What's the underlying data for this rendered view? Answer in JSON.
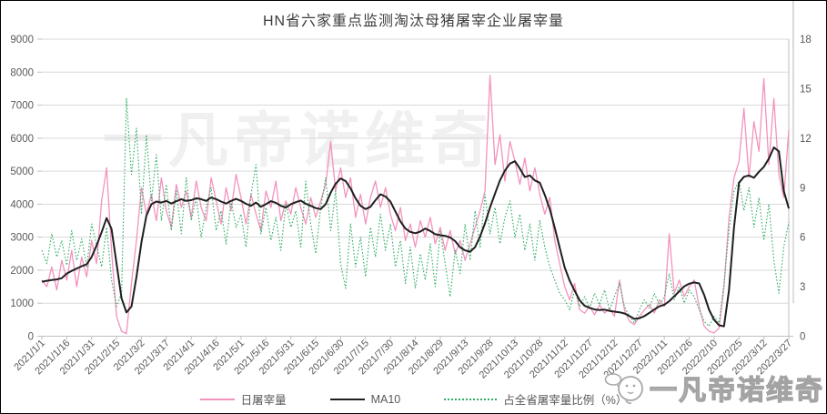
{
  "title": "HN省六家重点监测淘汰母猪屠宰企业屠宰量",
  "watermark_center": "一凡帝诺维奇",
  "watermark_corner": "一凡帝诺维奇",
  "legend": {
    "items": [
      {
        "label": "日屠宰量"
      },
      {
        "label": "MA10"
      },
      {
        "label": "占全省屠宰量比例（%）"
      }
    ]
  },
  "colors": {
    "title_text": "#3d3d3d",
    "axis_text": "#595959",
    "gridline": "#d9d9d9",
    "axis_line": "#bfbfbf",
    "pink_series": "#f293be",
    "black_series": "#1f1f1f",
    "green_series": "#2fad61",
    "frame_border": "#000000"
  },
  "chart_data": {
    "type": "line",
    "title": "HN省六家重点监测淘汰母猪屠宰企业屠宰量",
    "x_start_date": "2021/1/1",
    "x_end_date": "2022/3/27",
    "sample_interval_days": 3,
    "x_tick_interval_days": 15,
    "grid": "horizontal",
    "legend_position": "bottom",
    "x_tick_labels": [
      "2021/1/1",
      "2021/1/16",
      "2021/1/31",
      "2021/2/15",
      "2021/3/2",
      "2021/3/17",
      "2021/4/1",
      "2021/4/16",
      "2021/5/1",
      "2021/5/16",
      "2021/5/31",
      "2021/6/15",
      "2021/6/30",
      "2021/7/15",
      "2021/7/30",
      "2021/8/14",
      "2021/8/29",
      "2021/9/13",
      "2021/9/28",
      "2021/10/13",
      "2021/10/28",
      "2021/11/12",
      "2021/11/27",
      "2021/12/12",
      "2021/12/27",
      "2022/1/11",
      "2022/1/26",
      "2022/2/10",
      "2022/2/25",
      "2022/3/12",
      "2022/3/27"
    ],
    "left_axis": {
      "lim": [
        0,
        9000
      ],
      "ticks": [
        0,
        1000,
        2000,
        3000,
        4000,
        5000,
        6000,
        7000,
        8000,
        9000
      ]
    },
    "right_axis": {
      "lim": [
        0,
        18
      ],
      "ticks": [
        0,
        3,
        6,
        9,
        12,
        15,
        18
      ]
    },
    "series": [
      {
        "name": "日屠宰量",
        "axis": "left",
        "color": "#f293be",
        "line": "solid",
        "width": 1.3,
        "values": [
          1700,
          1500,
          2100,
          1400,
          2300,
          1700,
          2600,
          1500,
          2400,
          1800,
          2900,
          2200,
          4100,
          5100,
          2600,
          600,
          150,
          80,
          1600,
          2900,
          4500,
          3700,
          4300,
          3500,
          4800,
          3800,
          3300,
          4600,
          3900,
          4400,
          3600,
          4700,
          3900,
          3500,
          4800,
          4100,
          3400,
          4500,
          3800,
          4900,
          4200,
          3400,
          4300,
          3700,
          3200,
          4400,
          3900,
          4700,
          3500,
          4100,
          3700,
          4500,
          3900,
          3400,
          4200,
          3600,
          4100,
          4600,
          5900,
          4400,
          5100,
          4200,
          4800,
          3600,
          4300,
          3400,
          4200,
          4700,
          3900,
          4500,
          3700,
          3200,
          3900,
          2900,
          3400,
          2700,
          3500,
          3000,
          3600,
          2800,
          3300,
          2600,
          3200,
          2500,
          2900,
          2300,
          2800,
          3300,
          3800,
          4400,
          7900,
          5200,
          6100,
          4700,
          5900,
          5300,
          4600,
          5400,
          4400,
          5100,
          4300,
          3700,
          4200,
          2900,
          2200,
          1500,
          1100,
          1600,
          800,
          700,
          900,
          650,
          950,
          700,
          850,
          600,
          1700,
          800,
          450,
          350,
          600,
          800,
          950,
          700,
          1100,
          900,
          3100,
          1300,
          1700,
          1200,
          1500,
          1700,
          900,
          300,
          150,
          100,
          250,
          1500,
          3600,
          4800,
          5300,
          6900,
          4800,
          6500,
          5600,
          7800,
          5200,
          7200,
          4900,
          4200,
          6250
        ]
      },
      {
        "name": "MA10",
        "axis": "left",
        "color": "#1f1f1f",
        "line": "solid",
        "width": 2,
        "values": [
          1650,
          1680,
          1700,
          1720,
          1760,
          1900,
          1980,
          2050,
          2120,
          2180,
          2400,
          2750,
          3150,
          3580,
          3250,
          2200,
          1150,
          720,
          900,
          1800,
          2850,
          3650,
          4000,
          4080,
          4050,
          4100,
          4020,
          4090,
          4150,
          4100,
          4120,
          4180,
          4150,
          4100,
          4200,
          4150,
          4080,
          4020,
          4100,
          4160,
          4100,
          4010,
          3950,
          4050,
          3920,
          4000,
          4090,
          4040,
          3950,
          3900,
          4000,
          4060,
          4110,
          4010,
          3950,
          3880,
          3850,
          4000,
          4350,
          4620,
          4780,
          4700,
          4480,
          4180,
          3950,
          3850,
          3920,
          4120,
          4300,
          4230,
          4080,
          3780,
          3480,
          3260,
          3160,
          3120,
          3170,
          3260,
          3190,
          3090,
          3060,
          3040,
          2990,
          2880,
          2690,
          2600,
          2560,
          2700,
          3020,
          3420,
          3900,
          4320,
          4720,
          5020,
          5230,
          5300,
          5080,
          4820,
          4870,
          4720,
          4650,
          4280,
          3850,
          3280,
          2680,
          2080,
          1680,
          1380,
          1090,
          920,
          860,
          810,
          790,
          805,
          765,
          745,
          725,
          690,
          610,
          525,
          545,
          610,
          705,
          810,
          905,
          955,
          1060,
          1210,
          1360,
          1510,
          1590,
          1630,
          1600,
          1250,
          800,
          500,
          330,
          300,
          1400,
          3300,
          4650,
          4830,
          4870,
          4800,
          4980,
          5130,
          5380,
          5720,
          5600,
          4400,
          3870
        ]
      },
      {
        "name": "占全省屠宰量比例（%）",
        "axis": "right",
        "color": "#2fad61",
        "line": "dotted",
        "width": 1.1,
        "values": [
          5.2,
          4.4,
          6.2,
          4.8,
          5.8,
          4.3,
          6.4,
          4.6,
          5.9,
          4.2,
          6.8,
          5.5,
          4.2,
          6.6,
          3.4,
          1.8,
          2.6,
          14.4,
          9.8,
          12.6,
          7.4,
          12.2,
          8.2,
          11.0,
          7.0,
          9.2,
          6.4,
          8.8,
          6.2,
          9.6,
          7.0,
          8.4,
          6.0,
          7.8,
          9.0,
          6.4,
          7.6,
          5.6,
          8.2,
          6.6,
          7.4,
          5.4,
          8.6,
          10.4,
          6.2,
          7.8,
          5.8,
          7.2,
          5.2,
          8.0,
          6.6,
          7.6,
          5.4,
          9.4,
          6.8,
          5.0,
          7.8,
          9.6,
          6.4,
          8.8,
          4.4,
          2.9,
          6.8,
          4.2,
          6.0,
          3.6,
          6.6,
          4.8,
          7.4,
          5.2,
          6.8,
          4.2,
          5.8,
          3.2,
          5.4,
          2.9,
          5.0,
          3.4,
          5.6,
          3.0,
          6.4,
          4.4,
          2.4,
          5.2,
          3.8,
          6.8,
          4.6,
          7.6,
          5.4,
          8.6,
          6.2,
          7.8,
          5.6,
          7.2,
          8.2,
          6.0,
          7.4,
          5.2,
          6.8,
          4.6,
          7.0,
          5.4,
          4.2,
          3.4,
          2.6,
          2.2,
          1.6,
          2.8,
          1.8,
          2.4,
          1.7,
          2.6,
          1.9,
          2.8,
          1.6,
          2.4,
          3.2,
          1.8,
          1.2,
          0.8,
          1.6,
          2.2,
          1.7,
          2.6,
          1.9,
          2.4,
          3.8,
          2.2,
          3.0,
          2.0,
          2.8,
          2.4,
          1.6,
          0.9,
          0.6,
          1.2,
          0.8,
          3.2,
          6.4,
          8.8,
          9.4,
          7.6,
          9.0,
          6.6,
          8.4,
          5.8,
          8.0,
          4.6,
          2.6,
          5.4,
          6.9
        ]
      }
    ]
  }
}
